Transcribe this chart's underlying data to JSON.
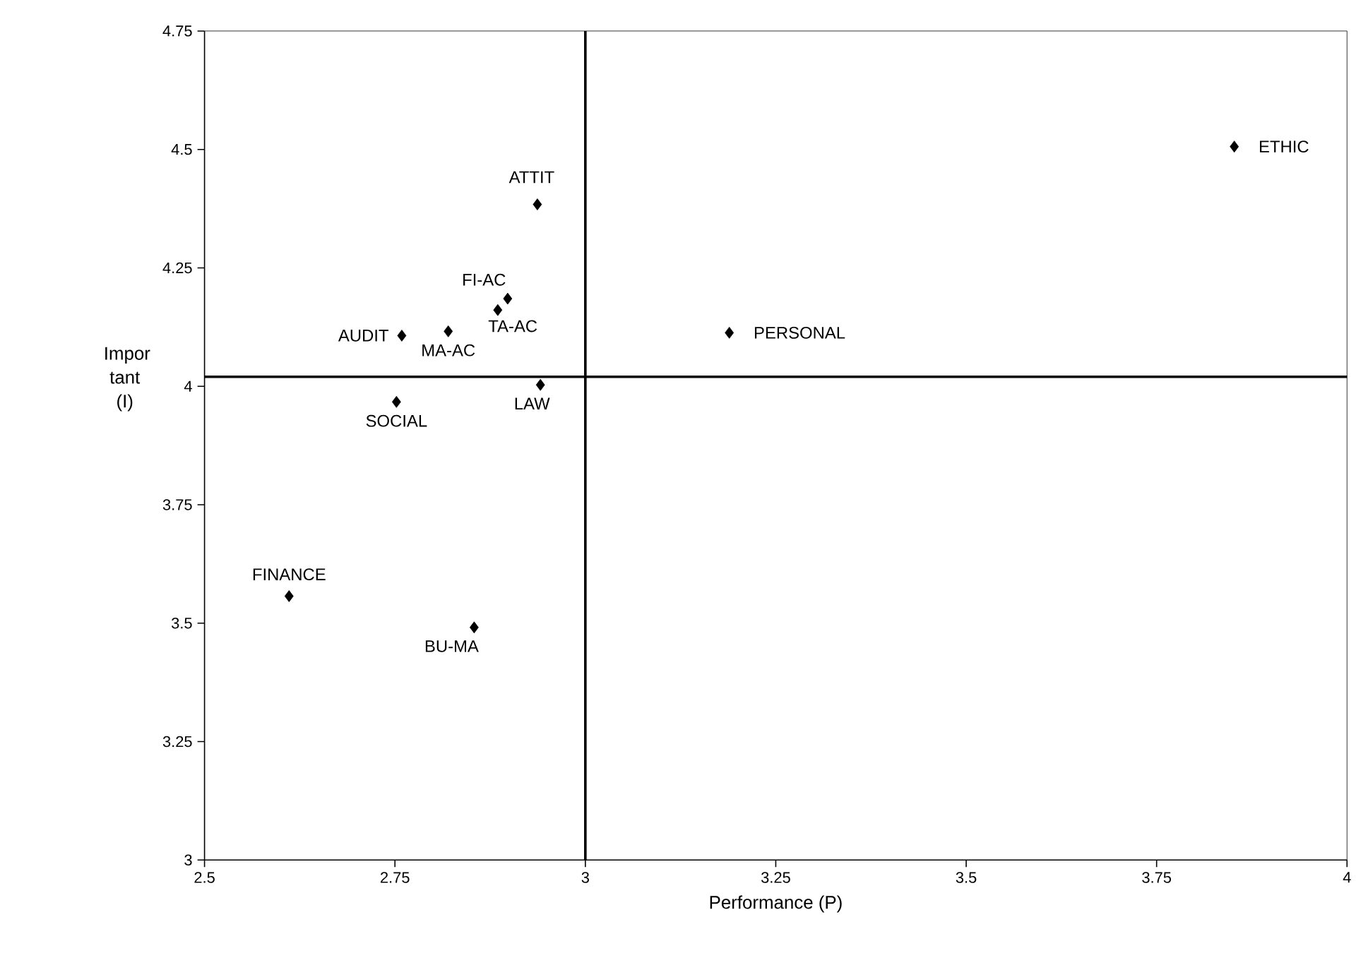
{
  "chart_data": {
    "type": "scatter",
    "xlabel": "Performance (P)",
    "ylabel": "Impor tant (I)",
    "x": [
      2.937,
      2.898,
      2.885,
      2.759,
      2.82,
      3.189,
      2.941,
      2.752,
      2.611,
      2.854,
      3.852
    ],
    "series": [
      {
        "color": "#000000",
        "values": [
          4.384,
          4.185,
          4.161,
          4.107,
          4.116,
          4.113,
          4.003,
          3.967,
          3.557,
          3.491,
          4.506
        ]
      }
    ],
    "annotations": [
      {
        "text": "ATTIT",
        "x": 2.937,
        "y": 4.384
      },
      {
        "text": "FI-AC",
        "x": 2.898,
        "y": 4.185
      },
      {
        "text": "TA-AC",
        "x": 2.885,
        "y": 4.161
      },
      {
        "text": "AUDIT",
        "x": 2.759,
        "y": 4.107
      },
      {
        "text": "MA-AC",
        "x": 2.82,
        "y": 4.116
      },
      {
        "text": "PERSONAL",
        "x": 3.189,
        "y": 4.113
      },
      {
        "text": "LAW",
        "x": 2.941,
        "y": 4.003
      },
      {
        "text": "SOCIAL",
        "x": 2.752,
        "y": 3.967
      },
      {
        "text": "FINANCE",
        "x": 2.611,
        "y": 3.557
      },
      {
        "text": "BU-MA",
        "x": 2.854,
        "y": 3.491
      },
      {
        "text": "ETHIC",
        "x": 3.852,
        "y": 4.506
      }
    ],
    "ref_lines": [
      {
        "axis": "x",
        "value": 3
      },
      {
        "axis": "y",
        "value": 4.02
      }
    ],
    "xlim": [
      2.5,
      4
    ],
    "ylim": [
      3,
      4.75
    ],
    "xticks": [
      2.5,
      2.75,
      3,
      3.25,
      3.5,
      3.75,
      4
    ],
    "yticks": [
      3,
      3.25,
      3.5,
      3.75,
      4,
      4.25,
      4.5,
      4.75
    ],
    "marker": "diamond"
  }
}
